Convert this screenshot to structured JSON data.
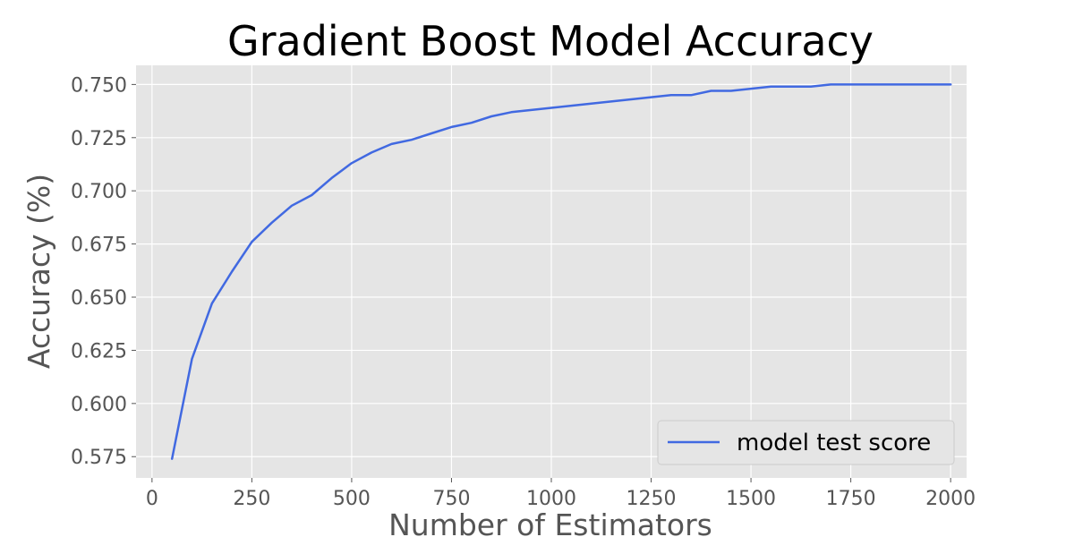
{
  "chart_data": {
    "type": "line",
    "title": "Gradient Boost Model Accuracy",
    "xlabel": "Number of Estimators",
    "ylabel": "Accuracy (%)",
    "xlim": [
      -40,
      2040
    ],
    "ylim": [
      0.565,
      0.759
    ],
    "x_ticks": [
      0,
      250,
      500,
      750,
      1000,
      1250,
      1500,
      1750,
      2000
    ],
    "y_ticks": [
      0.575,
      0.6,
      0.625,
      0.65,
      0.675,
      0.7,
      0.725,
      0.75
    ],
    "x_tick_labels": [
      "0",
      "250",
      "500",
      "750",
      "1000",
      "1250",
      "1500",
      "1750",
      "2000"
    ],
    "y_tick_labels": [
      "0.575",
      "0.600",
      "0.625",
      "0.650",
      "0.675",
      "0.700",
      "0.725",
      "0.750"
    ],
    "grid": true,
    "legend_position": "bottom-right",
    "series": [
      {
        "name": "model test score",
        "color": "#4169e1",
        "x": [
          50,
          100,
          150,
          200,
          250,
          300,
          350,
          400,
          450,
          500,
          550,
          600,
          650,
          700,
          750,
          800,
          850,
          900,
          950,
          1000,
          1050,
          1100,
          1150,
          1200,
          1250,
          1300,
          1350,
          1400,
          1450,
          1500,
          1550,
          1600,
          1650,
          1700,
          1750,
          1800,
          1850,
          1900,
          1950,
          2000
        ],
        "values": [
          0.574,
          0.621,
          0.647,
          0.662,
          0.676,
          0.685,
          0.693,
          0.698,
          0.706,
          0.713,
          0.718,
          0.722,
          0.724,
          0.727,
          0.73,
          0.732,
          0.735,
          0.737,
          0.738,
          0.739,
          0.74,
          0.741,
          0.742,
          0.743,
          0.744,
          0.745,
          0.745,
          0.747,
          0.747,
          0.748,
          0.749,
          0.749,
          0.749,
          0.75,
          0.75,
          0.75,
          0.75,
          0.75,
          0.75,
          0.75
        ]
      }
    ]
  }
}
